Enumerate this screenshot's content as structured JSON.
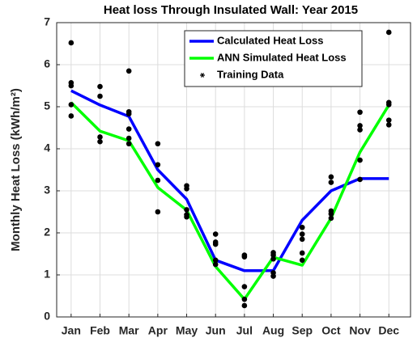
{
  "chart_data": {
    "type": "line",
    "title": "Heat loss Through Insulated Wall: Year 2015",
    "ylabel": "Monthly Heat Loss (kWh/m²)",
    "categories": [
      "Jan",
      "Feb",
      "Mar",
      "Apr",
      "May",
      "Jun",
      "Jul",
      "Aug",
      "Sep",
      "Oct",
      "Nov",
      "Dec"
    ],
    "ylim": [
      0,
      7
    ],
    "yticks": [
      0,
      1,
      2,
      3,
      4,
      5,
      6,
      7
    ],
    "grid": true,
    "legend": "top-right",
    "series": [
      {
        "name": "Calculated Heat Loss",
        "color": "#0000ff",
        "values": [
          5.38,
          5.04,
          4.77,
          3.5,
          2.8,
          1.35,
          1.1,
          1.1,
          2.3,
          3.0,
          3.29,
          3.29
        ]
      },
      {
        "name": "ANN Simulated Heat Loss",
        "color": "#00ff00",
        "values": [
          5.1,
          4.42,
          4.19,
          3.08,
          2.54,
          1.2,
          0.42,
          1.42,
          1.23,
          2.35,
          3.92,
          5.04
        ]
      },
      {
        "name": "Training Data",
        "color": "#000000",
        "values": [
          [
            6.52,
            5.57,
            5.5,
            5.05,
            4.78
          ],
          [
            5.48,
            5.25,
            4.28,
            4.17
          ],
          [
            5.85,
            4.88,
            4.83,
            4.47,
            4.25,
            4.12
          ],
          [
            4.12,
            3.62,
            3.25,
            2.5
          ],
          [
            3.12,
            3.05,
            2.55,
            2.43,
            2.38
          ],
          [
            1.97,
            1.78,
            1.73,
            1.35,
            1.25
          ],
          [
            1.47,
            1.43,
            0.72,
            0.42,
            0.27
          ],
          [
            1.53,
            1.47,
            1.38,
            1.05,
            0.97
          ],
          [
            2.13,
            1.97,
            1.85,
            1.52,
            1.35
          ],
          [
            3.33,
            3.2,
            2.52,
            2.45,
            2.35
          ],
          [
            4.87,
            4.55,
            4.45,
            3.73,
            3.27
          ],
          [
            6.77,
            5.1,
            5.05,
            4.68,
            4.57
          ]
        ]
      }
    ]
  }
}
